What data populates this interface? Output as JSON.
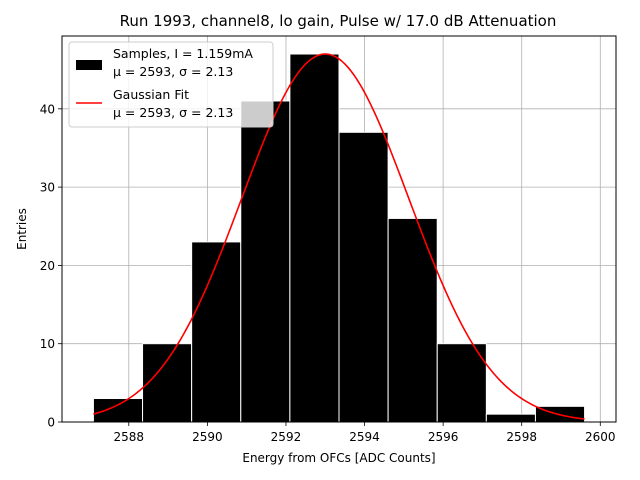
{
  "chart_data": {
    "type": "bar",
    "title": "Run 1993, channel8, lo gain, Pulse w/ 17.0 dB Attenuation",
    "xlabel": "Energy from OFCs [ADC Counts]",
    "ylabel": "Entries",
    "xlim": [
      2586.3,
      2600.4
    ],
    "ylim": [
      0,
      49.3
    ],
    "xticks": [
      2588,
      2590,
      2592,
      2594,
      2596,
      2598,
      2600
    ],
    "yticks": [
      0,
      10,
      20,
      30,
      40
    ],
    "grid": true,
    "legend_position": "top-left",
    "bins": [
      {
        "left": 2587.1,
        "right": 2588.35,
        "count": 3
      },
      {
        "left": 2588.35,
        "right": 2589.6,
        "count": 10
      },
      {
        "left": 2589.6,
        "right": 2590.85,
        "count": 23
      },
      {
        "left": 2590.85,
        "right": 2592.1,
        "count": 41
      },
      {
        "left": 2592.1,
        "right": 2593.35,
        "count": 47
      },
      {
        "left": 2593.35,
        "right": 2594.6,
        "count": 37
      },
      {
        "left": 2594.6,
        "right": 2595.85,
        "count": 26
      },
      {
        "left": 2595.85,
        "right": 2597.1,
        "count": 10
      },
      {
        "left": 2597.1,
        "right": 2598.35,
        "count": 1
      },
      {
        "left": 2598.35,
        "right": 2599.6,
        "count": 2
      }
    ],
    "fit": {
      "mu": 2593.0,
      "sigma": 2.13,
      "amplitude": 47.0,
      "x_range": [
        2587.1,
        2599.6
      ]
    },
    "series_colors": {
      "samples": "#000000",
      "fit": "#ff0000",
      "bar_edge": "#ffffff"
    },
    "legend": [
      {
        "name": "samples",
        "line1": "Samples, I = 1.159mA",
        "line2": "μ = 2593, σ = 2.13"
      },
      {
        "name": "gaussian-fit",
        "line1": "Gaussian Fit",
        "line2": "μ = 2593, σ = 2.13"
      }
    ]
  }
}
